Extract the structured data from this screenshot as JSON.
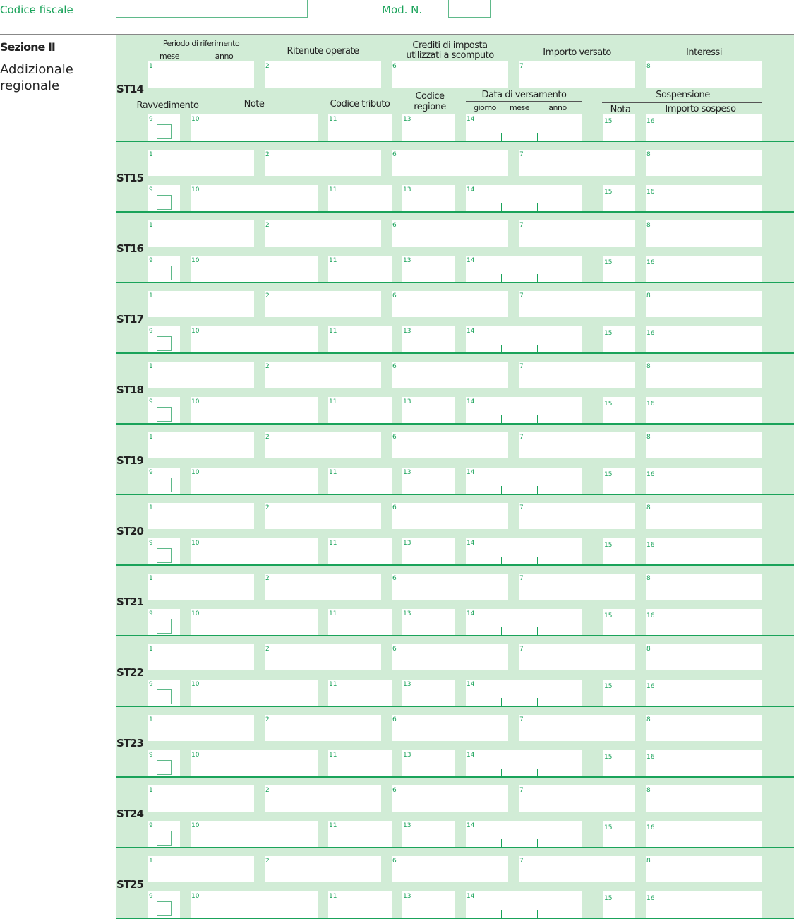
{
  "header": {
    "codice_fiscale_label": "Codice fiscale",
    "codice_fiscale_value": "",
    "mod_label": "Mod. N.",
    "mod_value": ""
  },
  "section": {
    "title": "Sezione II",
    "subtitle_line1": "Addizionale",
    "subtitle_line2": "regionale"
  },
  "column_headers": {
    "periodo": "Periodo di riferimento",
    "mese": "mese",
    "anno": "anno",
    "ritenute": "Ritenute operate",
    "crediti_1": "Crediti di imposta",
    "crediti_2": "utilizzati a scomputo",
    "importo_versato": "Importo versato",
    "interessi": "Interessi",
    "ravvedimento": "Ravvedimento",
    "note": "Note",
    "codice_tributo": "Codice tributo",
    "codice_regione_1": "Codice",
    "codice_regione_2": "regione",
    "data_versamento": "Data di versamento",
    "giorno": "giorno",
    "mese2": "mese",
    "anno2": "anno",
    "sospensione": "Sospensione",
    "nota": "Nota",
    "importo_sospeso": "Importo sospeso"
  },
  "field_numbers": {
    "top": [
      "1",
      "2",
      "6",
      "7",
      "8"
    ],
    "bottom": [
      "9",
      "10",
      "11",
      "13",
      "14",
      "15",
      "16"
    ]
  },
  "rows": [
    "ST14",
    "ST15",
    "ST16",
    "ST17",
    "ST18",
    "ST19",
    "ST20",
    "ST21",
    "ST22",
    "ST23",
    "ST24",
    "ST25"
  ],
  "colors": {
    "accent": "#1aa35a",
    "panel": "#d1ecd6"
  }
}
